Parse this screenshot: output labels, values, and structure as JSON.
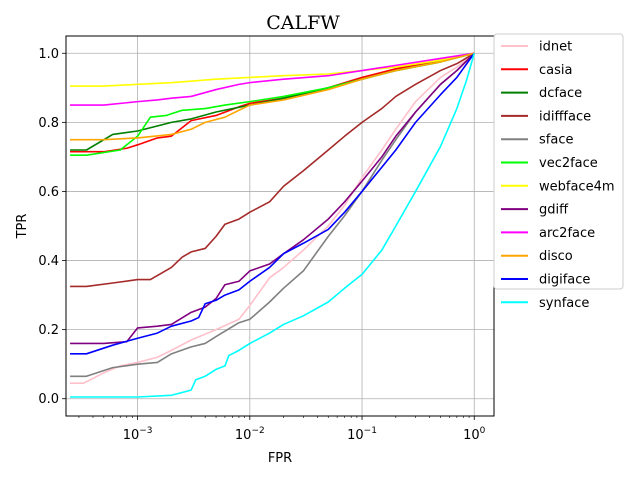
{
  "chart_data": {
    "type": "line",
    "title": "CALFW",
    "xlabel": "FPR",
    "ylabel": "TPR",
    "xscale": "log",
    "xlim": [
      0.00023,
      1.5
    ],
    "ylim": [
      -0.05,
      1.05
    ],
    "grid": true,
    "legend_position": "outside-right",
    "x_ticks": [
      {
        "value": 0.001,
        "base": "10",
        "exp": "−3"
      },
      {
        "value": 0.01,
        "base": "10",
        "exp": "−2"
      },
      {
        "value": 0.1,
        "base": "10",
        "exp": "−1"
      },
      {
        "value": 1,
        "base": "10",
        "exp": "0"
      }
    ],
    "y_ticks": [
      "0.0",
      "0.2",
      "0.4",
      "0.6",
      "0.8",
      "1.0"
    ],
    "series": [
      {
        "name": "idnet",
        "color": "#ffc0cb",
        "points": [
          [
            0.00025,
            0.045
          ],
          [
            0.00033,
            0.045
          ],
          [
            0.0005,
            0.075
          ],
          [
            0.0007,
            0.095
          ],
          [
            0.001,
            0.105
          ],
          [
            0.0015,
            0.12
          ],
          [
            0.002,
            0.14
          ],
          [
            0.003,
            0.17
          ],
          [
            0.005,
            0.2
          ],
          [
            0.008,
            0.23
          ],
          [
            0.01,
            0.27
          ],
          [
            0.015,
            0.35
          ],
          [
            0.02,
            0.38
          ],
          [
            0.03,
            0.43
          ],
          [
            0.05,
            0.5
          ],
          [
            0.07,
            0.56
          ],
          [
            0.1,
            0.64
          ],
          [
            0.15,
            0.72
          ],
          [
            0.2,
            0.78
          ],
          [
            0.3,
            0.86
          ],
          [
            0.5,
            0.93
          ],
          [
            0.7,
            0.96
          ],
          [
            1,
            1.0
          ]
        ]
      },
      {
        "name": "casia",
        "color": "#ff0000",
        "points": [
          [
            0.00025,
            0.715
          ],
          [
            0.0005,
            0.715
          ],
          [
            0.0008,
            0.725
          ],
          [
            0.001,
            0.735
          ],
          [
            0.0015,
            0.755
          ],
          [
            0.002,
            0.76
          ],
          [
            0.003,
            0.805
          ],
          [
            0.005,
            0.82
          ],
          [
            0.008,
            0.845
          ],
          [
            0.01,
            0.855
          ],
          [
            0.02,
            0.87
          ],
          [
            0.05,
            0.9
          ],
          [
            0.1,
            0.93
          ],
          [
            0.2,
            0.955
          ],
          [
            0.5,
            0.98
          ],
          [
            1,
            1.0
          ]
        ]
      },
      {
        "name": "dcface",
        "color": "#008000",
        "points": [
          [
            0.00025,
            0.72
          ],
          [
            0.00035,
            0.72
          ],
          [
            0.0006,
            0.765
          ],
          [
            0.001,
            0.775
          ],
          [
            0.002,
            0.8
          ],
          [
            0.003,
            0.81
          ],
          [
            0.005,
            0.83
          ],
          [
            0.01,
            0.85
          ],
          [
            0.02,
            0.87
          ],
          [
            0.05,
            0.9
          ],
          [
            0.1,
            0.925
          ],
          [
            0.2,
            0.95
          ],
          [
            0.5,
            0.975
          ],
          [
            1,
            1.0
          ]
        ]
      },
      {
        "name": "idiffface",
        "color": "#a52a2a",
        "points": [
          [
            0.00025,
            0.325
          ],
          [
            0.00035,
            0.325
          ],
          [
            0.0006,
            0.335
          ],
          [
            0.001,
            0.345
          ],
          [
            0.0013,
            0.345
          ],
          [
            0.002,
            0.38
          ],
          [
            0.0025,
            0.41
          ],
          [
            0.003,
            0.425
          ],
          [
            0.004,
            0.435
          ],
          [
            0.005,
            0.47
          ],
          [
            0.006,
            0.505
          ],
          [
            0.008,
            0.52
          ],
          [
            0.01,
            0.54
          ],
          [
            0.015,
            0.57
          ],
          [
            0.02,
            0.615
          ],
          [
            0.03,
            0.66
          ],
          [
            0.05,
            0.72
          ],
          [
            0.07,
            0.76
          ],
          [
            0.1,
            0.8
          ],
          [
            0.15,
            0.84
          ],
          [
            0.2,
            0.875
          ],
          [
            0.3,
            0.91
          ],
          [
            0.5,
            0.95
          ],
          [
            0.7,
            0.97
          ],
          [
            1,
            1.0
          ]
        ]
      },
      {
        "name": "sface",
        "color": "#808080",
        "points": [
          [
            0.00025,
            0.065
          ],
          [
            0.00035,
            0.065
          ],
          [
            0.0006,
            0.09
          ],
          [
            0.001,
            0.1
          ],
          [
            0.0015,
            0.105
          ],
          [
            0.002,
            0.13
          ],
          [
            0.003,
            0.15
          ],
          [
            0.004,
            0.16
          ],
          [
            0.005,
            0.18
          ],
          [
            0.008,
            0.22
          ],
          [
            0.01,
            0.23
          ],
          [
            0.015,
            0.28
          ],
          [
            0.02,
            0.32
          ],
          [
            0.03,
            0.37
          ],
          [
            0.05,
            0.47
          ],
          [
            0.07,
            0.53
          ],
          [
            0.1,
            0.6
          ],
          [
            0.15,
            0.69
          ],
          [
            0.2,
            0.75
          ],
          [
            0.3,
            0.83
          ],
          [
            0.5,
            0.91
          ],
          [
            0.7,
            0.95
          ],
          [
            1,
            1.0
          ]
        ]
      },
      {
        "name": "vec2face",
        "color": "#00ff00",
        "points": [
          [
            0.00025,
            0.705
          ],
          [
            0.00035,
            0.705
          ],
          [
            0.0007,
            0.72
          ],
          [
            0.001,
            0.76
          ],
          [
            0.0013,
            0.815
          ],
          [
            0.0018,
            0.82
          ],
          [
            0.002,
            0.825
          ],
          [
            0.0025,
            0.835
          ],
          [
            0.004,
            0.84
          ],
          [
            0.006,
            0.85
          ],
          [
            0.01,
            0.86
          ],
          [
            0.02,
            0.875
          ],
          [
            0.05,
            0.9
          ],
          [
            0.1,
            0.925
          ],
          [
            0.2,
            0.95
          ],
          [
            0.5,
            0.975
          ],
          [
            1,
            1.0
          ]
        ]
      },
      {
        "name": "webface4m",
        "color": "#ffff00",
        "points": [
          [
            0.00025,
            0.905
          ],
          [
            0.0005,
            0.905
          ],
          [
            0.001,
            0.91
          ],
          [
            0.002,
            0.915
          ],
          [
            0.005,
            0.925
          ],
          [
            0.01,
            0.93
          ],
          [
            0.02,
            0.935
          ],
          [
            0.05,
            0.94
          ],
          [
            0.1,
            0.95
          ],
          [
            0.2,
            0.96
          ],
          [
            0.5,
            0.98
          ],
          [
            1,
            1.0
          ]
        ]
      },
      {
        "name": "gdiff",
        "color": "#800080",
        "points": [
          [
            0.00025,
            0.16
          ],
          [
            0.0005,
            0.16
          ],
          [
            0.0008,
            0.165
          ],
          [
            0.001,
            0.205
          ],
          [
            0.0015,
            0.21
          ],
          [
            0.002,
            0.215
          ],
          [
            0.003,
            0.25
          ],
          [
            0.004,
            0.265
          ],
          [
            0.005,
            0.29
          ],
          [
            0.006,
            0.33
          ],
          [
            0.008,
            0.34
          ],
          [
            0.01,
            0.37
          ],
          [
            0.015,
            0.39
          ],
          [
            0.02,
            0.42
          ],
          [
            0.03,
            0.46
          ],
          [
            0.05,
            0.52
          ],
          [
            0.07,
            0.57
          ],
          [
            0.1,
            0.63
          ],
          [
            0.15,
            0.7
          ],
          [
            0.2,
            0.76
          ],
          [
            0.3,
            0.83
          ],
          [
            0.5,
            0.91
          ],
          [
            0.7,
            0.95
          ],
          [
            1,
            1.0
          ]
        ]
      },
      {
        "name": "arc2face",
        "color": "#ff00ff",
        "points": [
          [
            0.00025,
            0.85
          ],
          [
            0.0005,
            0.85
          ],
          [
            0.001,
            0.86
          ],
          [
            0.0015,
            0.865
          ],
          [
            0.002,
            0.87
          ],
          [
            0.003,
            0.875
          ],
          [
            0.005,
            0.895
          ],
          [
            0.008,
            0.91
          ],
          [
            0.01,
            0.915
          ],
          [
            0.02,
            0.925
          ],
          [
            0.05,
            0.935
          ],
          [
            0.1,
            0.95
          ],
          [
            0.2,
            0.965
          ],
          [
            0.5,
            0.985
          ],
          [
            1,
            1.0
          ]
        ]
      },
      {
        "name": "disco",
        "color": "#ffa500",
        "points": [
          [
            0.00025,
            0.75
          ],
          [
            0.0005,
            0.75
          ],
          [
            0.001,
            0.755
          ],
          [
            0.002,
            0.765
          ],
          [
            0.003,
            0.78
          ],
          [
            0.004,
            0.8
          ],
          [
            0.006,
            0.815
          ],
          [
            0.008,
            0.835
          ],
          [
            0.01,
            0.85
          ],
          [
            0.02,
            0.865
          ],
          [
            0.05,
            0.895
          ],
          [
            0.1,
            0.925
          ],
          [
            0.2,
            0.95
          ],
          [
            0.5,
            0.975
          ],
          [
            1,
            1.0
          ]
        ]
      },
      {
        "name": "digiface",
        "color": "#0000ff",
        "points": [
          [
            0.00025,
            0.13
          ],
          [
            0.00035,
            0.13
          ],
          [
            0.0006,
            0.155
          ],
          [
            0.001,
            0.175
          ],
          [
            0.0015,
            0.19
          ],
          [
            0.002,
            0.21
          ],
          [
            0.003,
            0.225
          ],
          [
            0.0035,
            0.235
          ],
          [
            0.004,
            0.275
          ],
          [
            0.005,
            0.285
          ],
          [
            0.006,
            0.3
          ],
          [
            0.008,
            0.315
          ],
          [
            0.01,
            0.34
          ],
          [
            0.015,
            0.38
          ],
          [
            0.02,
            0.42
          ],
          [
            0.03,
            0.45
          ],
          [
            0.05,
            0.49
          ],
          [
            0.07,
            0.54
          ],
          [
            0.1,
            0.6
          ],
          [
            0.15,
            0.67
          ],
          [
            0.2,
            0.72
          ],
          [
            0.3,
            0.8
          ],
          [
            0.5,
            0.88
          ],
          [
            0.7,
            0.93
          ],
          [
            1,
            1.0
          ]
        ]
      },
      {
        "name": "synface",
        "color": "#00ffff",
        "points": [
          [
            0.00025,
            0.005
          ],
          [
            0.0005,
            0.005
          ],
          [
            0.001,
            0.005
          ],
          [
            0.002,
            0.01
          ],
          [
            0.003,
            0.025
          ],
          [
            0.0033,
            0.055
          ],
          [
            0.004,
            0.065
          ],
          [
            0.005,
            0.085
          ],
          [
            0.006,
            0.095
          ],
          [
            0.0065,
            0.125
          ],
          [
            0.008,
            0.14
          ],
          [
            0.01,
            0.16
          ],
          [
            0.015,
            0.19
          ],
          [
            0.02,
            0.215
          ],
          [
            0.03,
            0.24
          ],
          [
            0.05,
            0.28
          ],
          [
            0.07,
            0.32
          ],
          [
            0.1,
            0.36
          ],
          [
            0.15,
            0.43
          ],
          [
            0.2,
            0.5
          ],
          [
            0.3,
            0.6
          ],
          [
            0.5,
            0.73
          ],
          [
            0.7,
            0.84
          ],
          [
            0.85,
            0.92
          ],
          [
            1,
            1.0
          ]
        ]
      }
    ]
  }
}
